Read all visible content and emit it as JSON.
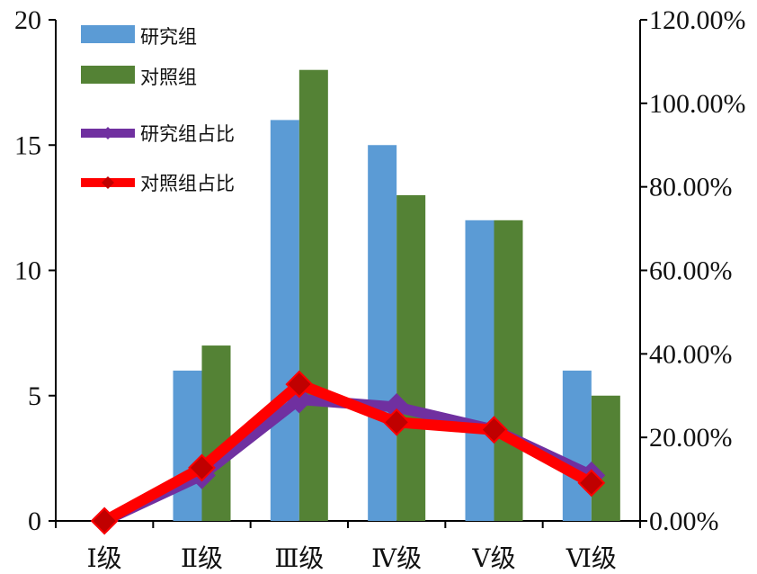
{
  "chart_data": {
    "type": "bar",
    "categories": [
      "Ⅰ级",
      "Ⅱ级",
      "Ⅲ级",
      "Ⅳ级",
      "Ⅴ级",
      "Ⅵ级"
    ],
    "series": [
      {
        "name": "研究组",
        "type": "bar",
        "axis": "left",
        "color": "#5b9bd5",
        "values": [
          0,
          6,
          16,
          15,
          12,
          6
        ]
      },
      {
        "name": "对照组",
        "type": "bar",
        "axis": "left",
        "color": "#548235",
        "values": [
          0,
          7,
          18,
          13,
          12,
          5
        ]
      },
      {
        "name": "研究组占比",
        "type": "line",
        "axis": "right",
        "color": "#7030a0",
        "values": [
          0,
          10.91,
          29.09,
          27.27,
          21.82,
          10.91
        ]
      },
      {
        "name": "对照组占比",
        "type": "line",
        "axis": "right",
        "color": "#ff0000",
        "marker_color": "#c00000",
        "values": [
          0,
          12.73,
          32.73,
          23.64,
          21.82,
          9.09
        ]
      }
    ],
    "ylim_left": [
      0,
      20
    ],
    "yticks_left": [
      "0",
      "5",
      "10",
      "15",
      "20"
    ],
    "ylim_right": [
      0,
      120
    ],
    "yticks_right": [
      "0.00%",
      "20.00%",
      "40.00%",
      "60.00%",
      "80.00%",
      "100.00%",
      "120.00%"
    ],
    "title": "",
    "xlabel": "",
    "ylabel": "",
    "grid": false,
    "legend": "top-left"
  }
}
